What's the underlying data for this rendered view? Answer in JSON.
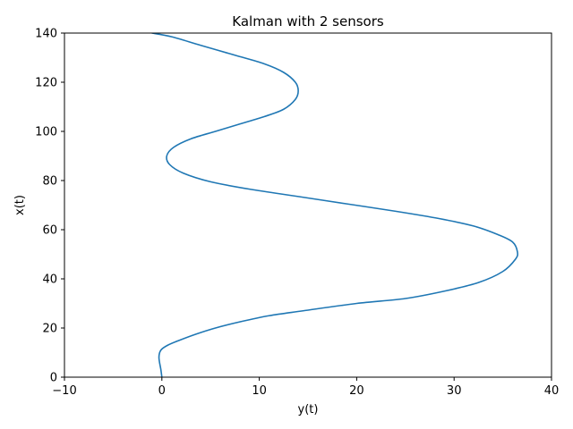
{
  "chart_data": {
    "type": "line",
    "title": "Kalman with 2 sensors",
    "xlabel": "y(t)",
    "ylabel": "x(t)",
    "xlim": [
      -10,
      40
    ],
    "ylim": [
      0,
      140
    ],
    "xticks": [
      -10,
      0,
      10,
      20,
      30,
      40
    ],
    "yticks": [
      0,
      20,
      40,
      60,
      80,
      100,
      120,
      140
    ],
    "xtick_labels": [
      "−10",
      "0",
      "10",
      "20",
      "30",
      "40"
    ],
    "ytick_labels": [
      "0",
      "20",
      "40",
      "60",
      "80",
      "100",
      "120",
      "140"
    ],
    "grid": false,
    "series": [
      {
        "color": "#1f77b4",
        "x": [
          0.0,
          -0.1,
          -0.3,
          -0.1,
          0.6,
          1.8,
          3.5,
          5.5,
          8.0,
          11.0,
          14.5,
          20.0,
          25.0,
          29.0,
          32.5,
          35.0,
          36.3,
          36.5,
          36.0,
          34.5,
          32.0,
          28.5,
          24.0,
          19.0,
          14.0,
          9.0,
          5.0,
          2.2,
          0.8,
          0.5,
          1.2,
          3.0,
          5.5,
          8.0,
          10.5,
          12.5,
          13.7,
          14.0,
          13.7,
          12.5,
          10.5,
          7.5,
          4.0,
          1.0,
          -1.0
        ],
        "y": [
          0,
          3,
          8,
          11,
          13,
          15,
          17.5,
          20,
          22.5,
          25,
          27,
          30,
          32,
          35,
          38.5,
          43,
          48,
          51,
          55,
          58,
          61.5,
          64.5,
          67.5,
          70.5,
          73.5,
          76.5,
          79.5,
          83,
          86.5,
          90,
          93.5,
          97,
          100,
          103,
          106,
          109,
          113,
          116.5,
          120,
          124,
          127.5,
          131,
          135,
          138.5,
          140
        ]
      }
    ]
  }
}
